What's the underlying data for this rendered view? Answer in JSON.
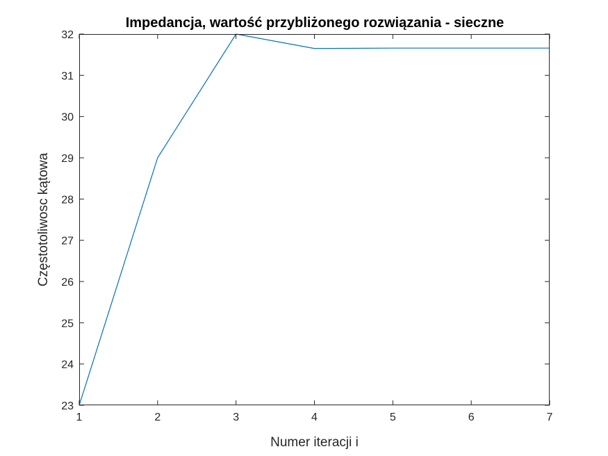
{
  "chart_data": {
    "type": "line",
    "title": "Impedancja, wartość przybliżonego rozwiązania - sieczne",
    "xlabel": "Numer iteracji i",
    "ylabel": "Częstotoliwosc kątowa",
    "xlim": [
      1,
      7
    ],
    "ylim": [
      23,
      32
    ],
    "xticks": [
      1,
      2,
      3,
      4,
      5,
      6,
      7
    ],
    "yticks": [
      23,
      24,
      25,
      26,
      27,
      28,
      29,
      30,
      31,
      32
    ],
    "grid": false,
    "legend": "none",
    "series": [
      {
        "x": [
          1,
          2,
          3,
          4,
          5,
          6,
          7
        ],
        "values": [
          23.0,
          29.0,
          32.0,
          31.65,
          31.66,
          31.66,
          31.66
        ],
        "color": "#0072BD"
      }
    ]
  },
  "colors": {
    "axis": "#262626",
    "background": "#ffffff",
    "line": "#0072BD"
  }
}
